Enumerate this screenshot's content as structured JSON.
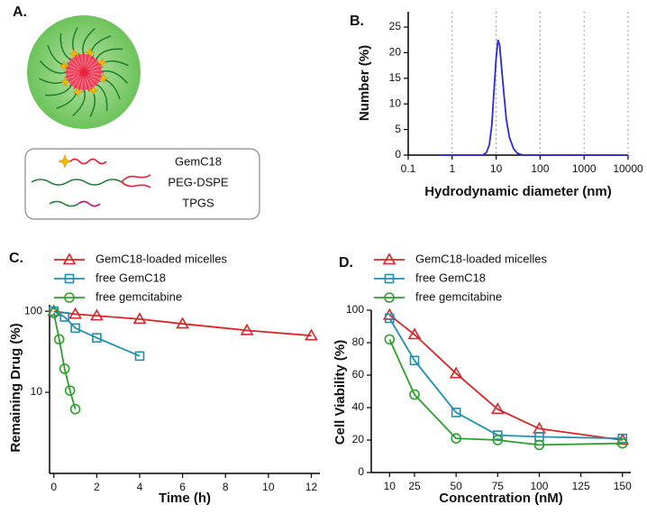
{
  "chart_data": [
    {
      "type": "diagram",
      "panel_label": "A.",
      "components": [
        "GemC18",
        "PEG-DSPE",
        "TPGS"
      ]
    },
    {
      "type": "line",
      "panel_label": "B.",
      "xlabel": "Hydrodynamic diameter (nm)",
      "ylabel": "Number (%)",
      "x": [
        0.5,
        5,
        6,
        7,
        8,
        9,
        10,
        11,
        12,
        13,
        15,
        17,
        20,
        25,
        30,
        40,
        10000
      ],
      "series": [
        {
          "color": "#2a2ad6",
          "values": [
            0,
            0,
            0.5,
            2,
            6,
            13,
            19,
            22.5,
            21.5,
            18,
            12,
            7,
            3.5,
            1.2,
            0.4,
            0,
            0
          ]
        }
      ],
      "xscale": "log",
      "xlim": [
        0.1,
        10000
      ],
      "xticks": [
        0.1,
        1,
        10,
        100,
        1000,
        10000
      ],
      "ylim": [
        0,
        28
      ],
      "yticks": [
        0,
        5,
        10,
        15,
        20,
        25
      ],
      "grid": true
    },
    {
      "type": "line",
      "panel_label": "C.",
      "xlabel": "Time (h)",
      "ylabel": "Remaining Drug (%)",
      "series": [
        {
          "name": "GemC18-loaded micelles",
          "color": "#d62728",
          "marker": "triangle",
          "x": [
            0,
            1,
            2,
            4,
            6,
            9,
            12
          ],
          "values": [
            100,
            92,
            88,
            80,
            70,
            58,
            50
          ]
        },
        {
          "name": "free GemC18",
          "color": "#1f8fb0",
          "marker": "square",
          "x": [
            0,
            0.5,
            1,
            2,
            4
          ],
          "values": [
            100,
            85,
            62,
            47,
            28
          ]
        },
        {
          "name": "free gemcitabine",
          "color": "#2ca02c",
          "marker": "circle",
          "x": [
            0,
            0.25,
            0.5,
            0.75,
            1
          ],
          "values": [
            95,
            45,
            19.5,
            10.5,
            6.2
          ]
        }
      ],
      "xlim": [
        -0.2,
        12.4
      ],
      "xticks": [
        0,
        2,
        4,
        6,
        8,
        10,
        12
      ],
      "yscale": "log",
      "ylim": [
        1,
        120
      ],
      "yticks": [
        10,
        100
      ]
    },
    {
      "type": "line",
      "panel_label": "D.",
      "xlabel": "Concentration (nM)",
      "ylabel": "Cell Viability (%)",
      "series": [
        {
          "name": "GemC18-loaded micelles",
          "color": "#d62728",
          "marker": "triangle",
          "x": [
            10,
            25,
            50,
            75,
            100,
            150
          ],
          "values": [
            97,
            85,
            61,
            39,
            27,
            20
          ]
        },
        {
          "name": "free GemC18",
          "color": "#1f8fb0",
          "marker": "square",
          "x": [
            10,
            25,
            50,
            75,
            100,
            150
          ],
          "values": [
            95,
            69,
            37,
            23,
            22,
            21
          ]
        },
        {
          "name": "free gemcitabine",
          "color": "#2ca02c",
          "marker": "circle",
          "x": [
            10,
            25,
            50,
            75,
            100,
            150
          ],
          "values": [
            82,
            48,
            21,
            20,
            17,
            18
          ]
        }
      ],
      "xlim": [
        -1,
        155
      ],
      "xticks": [
        10,
        25,
        50,
        75,
        100,
        125,
        150
      ],
      "ylim": [
        0,
        100
      ],
      "yticks": [
        0,
        20,
        40,
        60,
        80,
        100
      ]
    }
  ]
}
